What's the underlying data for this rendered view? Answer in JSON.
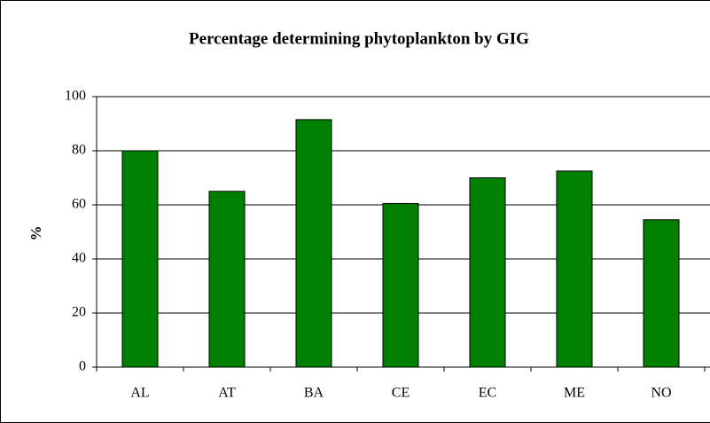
{
  "chart_data": {
    "type": "bar",
    "title": "Percentage determining phytoplankton by GIG",
    "y_label": "%",
    "categories": [
      "AL",
      "AT",
      "BA",
      "CE",
      "EC",
      "ME",
      "NO"
    ],
    "values": [
      80,
      65,
      91.5,
      60.5,
      70,
      72.5,
      54.5
    ],
    "color": "#008000",
    "ylim": [
      0,
      100
    ],
    "yticks": [
      0,
      20,
      40,
      60,
      80,
      100
    ],
    "grid": true
  }
}
